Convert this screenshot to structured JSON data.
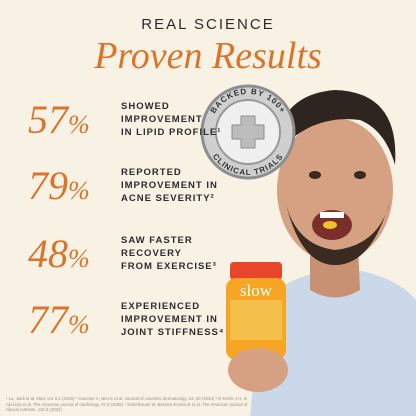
{
  "header": {
    "kicker": "REAL SCIENCE",
    "title": "Proven Results"
  },
  "stats": [
    {
      "value": 57,
      "unit": "%",
      "lines": [
        "SHOWED",
        "IMPROVEMENT",
        "IN LIPID PROFILE¹"
      ]
    },
    {
      "value": 79,
      "unit": "%",
      "lines": [
        "REPORTED",
        "IMPROVEMENT IN",
        "ACNE SEVERITY²"
      ]
    },
    {
      "value": 48,
      "unit": "%",
      "lines": [
        "SAW FASTER",
        "RECOVERY",
        "FROM EXERCISE³"
      ]
    },
    {
      "value": 77,
      "unit": "%",
      "lines": [
        "EXPERIENCED",
        "IMPROVEMENT IN",
        "JOINT STIFFNESS⁴"
      ]
    }
  ],
  "badge": {
    "top": "BACKED BY 100+",
    "bottom": "CLINICAL TRIALS"
  },
  "product": {
    "label": "slow"
  },
  "footnote": "¹ Lu, Jaeli et al. Med, vol. 6,1 (2025) ² Guecher A, Neu K et al. Journal of cosmetic dermatology, 23, 10 (2024) ³ O Keefe J H, el Abuissa et al. The American journal of cardiology, 97,8 (2006) ⁴ Donelhouse W, Berassi-Exsina B et al. The American journal of clinical nutrition, 116,3 (2022)"
}
